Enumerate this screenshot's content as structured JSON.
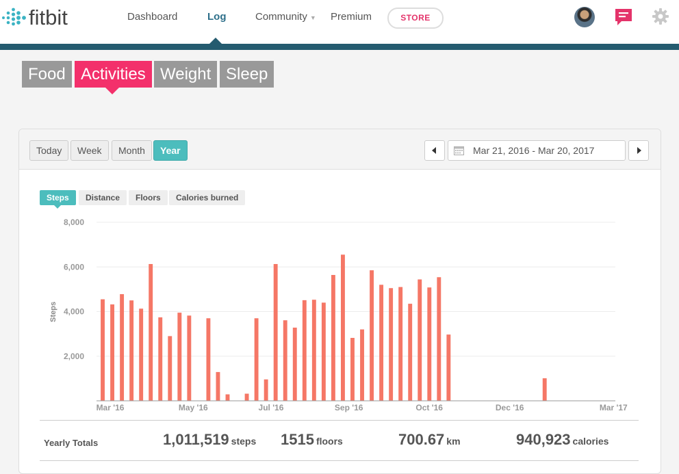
{
  "brand": {
    "name": "fitbit"
  },
  "nav": {
    "dashboard": "Dashboard",
    "log": "Log",
    "community": "Community",
    "premium": "Premium",
    "store": "STORE"
  },
  "categories": [
    "Food",
    "Activities",
    "Weight",
    "Sleep"
  ],
  "active_category": "Activities",
  "ranges": [
    "Today",
    "Week",
    "Month",
    "Year"
  ],
  "active_range": "Year",
  "date_range": "Mar 21, 2016 - Mar 20, 2017",
  "metrics": [
    "Steps",
    "Distance",
    "Floors",
    "Calories burned"
  ],
  "active_metric": "Steps",
  "totals": {
    "label": "Yearly Totals",
    "steps_value": "1,011,519",
    "steps_unit": "steps",
    "floors_value": "1515",
    "floors_unit": "floors",
    "km_value": "700.67",
    "km_unit": "km",
    "calories_value": "940,923",
    "calories_unit": "calories"
  },
  "colors": {
    "accent_pink": "#f3306b",
    "accent_teal": "#4cbdbd",
    "bar": "#f57766",
    "nav_stripe": "#245b6f"
  },
  "chart_data": {
    "type": "bar",
    "ylabel": "Steps",
    "ylim": [
      0,
      8000
    ],
    "yticks": [
      2000,
      4000,
      6000,
      8000
    ],
    "ytick_labels": [
      "2,000",
      "4,000",
      "6,000",
      "8,000"
    ],
    "xtick_labels": [
      "Mar '16",
      "May '16",
      "Jul '16",
      "Sep '16",
      "Oct '16",
      "Dec '16",
      "Mar '17"
    ],
    "grid": true,
    "values": [
      4550,
      4320,
      4780,
      4500,
      4130,
      6130,
      3740,
      2900,
      3950,
      3820,
      0,
      3700,
      1290,
      290,
      0,
      320,
      3700,
      960,
      6130,
      3610,
      3280,
      4510,
      4530,
      4400,
      5640,
      6550,
      2820,
      3200,
      5850,
      5200,
      5050,
      5100,
      4350,
      5440,
      5080,
      5540,
      2970,
      0,
      0,
      0,
      0,
      0,
      0,
      0,
      0,
      0,
      1010,
      0,
      0,
      0,
      0,
      0,
      0,
      0
    ]
  }
}
